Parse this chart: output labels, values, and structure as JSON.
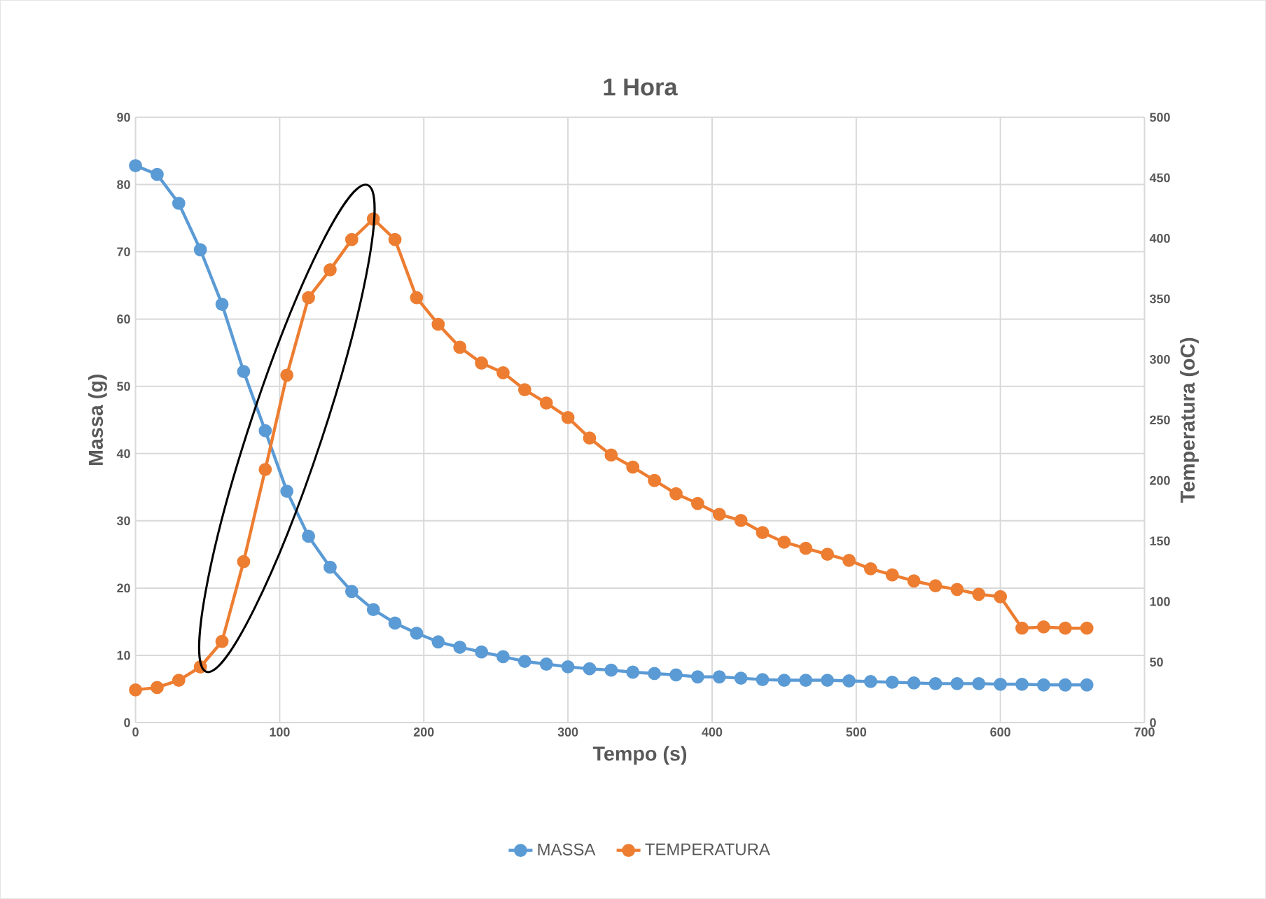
{
  "chart_data": {
    "type": "line",
    "title": "1 Hora",
    "xlabel": "Tempo (s)",
    "ylabel": "Massa (g)",
    "y2label": "Temperatura (oC)",
    "x": [
      0,
      15,
      30,
      45,
      60,
      75,
      90,
      105,
      120,
      135,
      150,
      165,
      180,
      195,
      210,
      225,
      240,
      255,
      270,
      285,
      300,
      315,
      330,
      345,
      360,
      375,
      390,
      405,
      420,
      435,
      450,
      465,
      480,
      495,
      510,
      525,
      540,
      555,
      570,
      585,
      600,
      615,
      630,
      645,
      660
    ],
    "series": [
      {
        "name": "MASSA",
        "color": "#5b9bd5",
        "values": [
          82.8,
          81.5,
          77.2,
          70.3,
          62.2,
          52.2,
          43.4,
          34.4,
          27.7,
          23.1,
          19.5,
          16.8,
          14.8,
          13.3,
          12.0,
          11.2,
          10.5,
          9.8,
          9.1,
          8.7,
          8.3,
          8.0,
          7.8,
          7.5,
          7.3,
          7.1,
          6.8,
          6.8,
          6.6,
          6.4,
          6.3,
          6.3,
          6.3,
          6.2,
          6.1,
          6.0,
          5.9,
          5.8,
          5.8,
          5.8,
          5.7,
          5.7,
          5.6,
          5.6,
          5.6
        ]
      },
      {
        "name": "TEMPERATURA",
        "color": "#ed7d31",
        "axis": "y2",
        "values": [
          27,
          29,
          35,
          46,
          67,
          133,
          209,
          287,
          351,
          374,
          399,
          416,
          399,
          351,
          329,
          310,
          297,
          289,
          275,
          264,
          252,
          235,
          221,
          211,
          200,
          189,
          181,
          172,
          167,
          157,
          149,
          144,
          139,
          134,
          127,
          122,
          117,
          113,
          110,
          106,
          104,
          78,
          79,
          78,
          78
        ]
      }
    ],
    "xlim": [
      0,
      700
    ],
    "xticks": [
      0,
      100,
      200,
      300,
      400,
      500,
      600,
      700
    ],
    "ylim": [
      0,
      90
    ],
    "yticks": [
      0,
      10,
      20,
      30,
      40,
      50,
      60,
      70,
      80,
      90
    ],
    "y2lim": [
      0,
      500
    ],
    "y2ticks": [
      0,
      50,
      100,
      150,
      200,
      250,
      300,
      350,
      400,
      450,
      500
    ],
    "grid": true,
    "legend": "bottom",
    "marker": "circle",
    "line_style": "solid"
  }
}
